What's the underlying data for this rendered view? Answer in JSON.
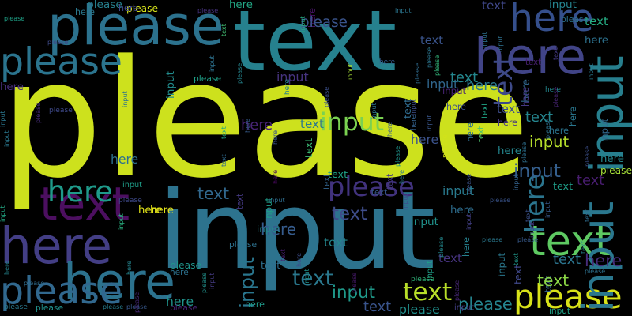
{
  "background": "#000000",
  "palette": {
    "lime": "#cde11d",
    "teal": "#21868f",
    "navy": "#31547d",
    "green": "#38b977",
    "purple": "#433e85",
    "dark_purple": "#440154",
    "blue": "#2f6c8e",
    "yellow_green": "#a9db35"
  },
  "words": [
    {
      "text": "please",
      "color": "#cde11d"
    },
    {
      "text": "input",
      "color": "#2d738e"
    },
    {
      "text": "text",
      "color": "#26818e"
    },
    {
      "text": "here",
      "color": "#433e85"
    },
    {
      "text": "please",
      "color": "#2c728e"
    },
    {
      "text": "here",
      "color": "#414487"
    },
    {
      "text": "text",
      "color": "#4c0f60"
    },
    {
      "text": "please",
      "color": "#2b748e"
    },
    {
      "text": "here",
      "color": "#2c728e"
    },
    {
      "text": "please",
      "color": "#31688e"
    },
    {
      "text": "input",
      "color": "#277f8e"
    },
    {
      "text": "here",
      "color": "#354f8c"
    },
    {
      "text": "text",
      "color": "#5ec962"
    },
    {
      "text": "please",
      "color": "#d8e219"
    },
    {
      "text": "input",
      "color": "#2a778e"
    },
    {
      "text": "input",
      "color": "#2a768e"
    },
    {
      "text": "here",
      "color": "#2b758e"
    },
    {
      "text": "input",
      "color": "#7ad151"
    },
    {
      "text": "text",
      "color": "#3e4a89"
    },
    {
      "text": "please",
      "color": "#41327d"
    },
    {
      "text": "here",
      "color": "#471365"
    },
    {
      "text": "input",
      "color": "#355f8d"
    },
    {
      "text": "please",
      "color": "#3a548c"
    },
    {
      "text": "input",
      "color": "#b5de2b"
    },
    {
      "text": "please",
      "color": "#d2e21b"
    },
    {
      "text": "here",
      "color": "#1f9a8a"
    },
    {
      "text": "text",
      "color": "#3bbb75"
    },
    {
      "text": "text",
      "color": "#32658e"
    },
    {
      "text": "here",
      "color": "#31688e"
    },
    {
      "text": "here",
      "color": "#24868e"
    },
    {
      "text": "input",
      "color": "#1f9e89"
    },
    {
      "text": "text",
      "color": "#2f6b8e"
    },
    {
      "text": "please",
      "color": "#3b528b"
    },
    {
      "text": "text",
      "color": "#34608d"
    },
    {
      "text": "input",
      "color": "#1f998a"
    },
    {
      "text": "please",
      "color": "#21908d"
    },
    {
      "text": "here",
      "color": "#2e6e8e"
    },
    {
      "text": "text",
      "color": "#481d6f"
    },
    {
      "text": "input",
      "color": "#29798e"
    },
    {
      "text": "here",
      "color": "#453882"
    },
    {
      "text": "please",
      "color": "#25848e"
    },
    {
      "text": "text",
      "color": "#24868e"
    },
    {
      "text": "text",
      "color": "#b8de29"
    },
    {
      "text": "text",
      "color": "#2a788e"
    },
    {
      "text": "input",
      "color": "#2a788e"
    },
    {
      "text": "please",
      "color": "#2e6f8e"
    },
    {
      "text": "text",
      "color": "#2f6c8e"
    },
    {
      "text": "please",
      "color": "#46327e"
    },
    {
      "text": "here",
      "color": "#22a785"
    },
    {
      "text": "please",
      "color": "#a2da37"
    },
    {
      "text": "input",
      "color": "#46337f"
    },
    {
      "text": "input",
      "color": "#30698e"
    },
    {
      "text": "here",
      "color": "#365c8d"
    },
    {
      "text": "input",
      "color": "#228c8d"
    },
    {
      "text": "input",
      "color": "#2c718e"
    },
    {
      "text": "please",
      "color": "#27808e"
    },
    {
      "text": "here",
      "color": "#482475"
    },
    {
      "text": "text",
      "color": "#3a548c"
    },
    {
      "text": "input",
      "color": "#1f9f88"
    },
    {
      "text": "here",
      "color": "#26818e"
    },
    {
      "text": "here",
      "color": "#2a788e"
    },
    {
      "text": "text",
      "color": "#20a386"
    },
    {
      "text": "please",
      "color": "#32b67a"
    },
    {
      "text": "input",
      "color": "#a5db36"
    },
    {
      "text": "please",
      "color": "#482878"
    },
    {
      "text": "input",
      "color": "#31678e"
    },
    {
      "text": "here",
      "color": "#453781"
    },
    {
      "text": "here",
      "color": "#3b528b"
    },
    {
      "text": "please",
      "color": "#2c718e"
    },
    {
      "text": "input",
      "color": "#297a8e"
    },
    {
      "text": "text",
      "color": "#31688e"
    },
    {
      "text": "input",
      "color": "#2d718e"
    },
    {
      "text": "text",
      "color": "#3f4889"
    },
    {
      "text": "please",
      "color": "#d5e21a"
    },
    {
      "text": "here",
      "color": "#2a778e"
    },
    {
      "text": "please",
      "color": "#1f958b"
    },
    {
      "text": "input",
      "color": "#29af7f"
    },
    {
      "text": "here",
      "color": "#e5e419"
    },
    {
      "text": "text",
      "color": "#3e4c8a"
    },
    {
      "text": "input",
      "color": "#33628d"
    },
    {
      "text": "please",
      "color": "#481a6c"
    },
    {
      "text": "please",
      "color": "#31b57b"
    },
    {
      "text": "text",
      "color": "#20a486"
    },
    {
      "text": "input",
      "color": "#39568c"
    },
    {
      "text": "here",
      "color": "#2e6d8e"
    },
    {
      "text": "please",
      "color": "#472d7b"
    },
    {
      "text": "text",
      "color": "#2b748e"
    },
    {
      "text": "input",
      "color": "#423f85"
    },
    {
      "text": "please",
      "color": "#1f948c"
    },
    {
      "text": "here",
      "color": "#20938c"
    },
    {
      "text": "here",
      "color": "#3c4f8a"
    },
    {
      "text": "text",
      "color": "#40bd72"
    },
    {
      "text": "here",
      "color": "#e2e418"
    },
    {
      "text": "here",
      "color": "#472c7a"
    },
    {
      "text": "text",
      "color": "#8bd646"
    },
    {
      "text": "text",
      "color": "#4ec36b"
    },
    {
      "text": "please",
      "color": "#472a7a"
    },
    {
      "text": "input",
      "color": "#25838e"
    },
    {
      "text": "here",
      "color": "#24878e"
    },
    {
      "text": "here",
      "color": "#2b748e"
    },
    {
      "text": "text",
      "color": "#443983"
    },
    {
      "text": "here",
      "color": "#46085c"
    },
    {
      "text": "text",
      "color": "#2e6e8e"
    },
    {
      "text": "input",
      "color": "#443a83"
    },
    {
      "text": "please",
      "color": "#482475"
    },
    {
      "text": "please",
      "color": "#2a788e"
    },
    {
      "text": "input",
      "color": "#20928c"
    },
    {
      "text": "text",
      "color": "#453882"
    },
    {
      "text": "text",
      "color": "#24878e"
    },
    {
      "text": "input",
      "color": "#3c508b"
    },
    {
      "text": "please",
      "color": "#2d718e"
    },
    {
      "text": "here",
      "color": "#26828e"
    },
    {
      "text": "text",
      "color": "#46337f"
    },
    {
      "text": "please",
      "color": "#23898e"
    },
    {
      "text": "please",
      "color": "#3e4989"
    },
    {
      "text": "input",
      "color": "#24878e"
    },
    {
      "text": "here",
      "color": "#34618d"
    },
    {
      "text": "input",
      "color": "#2d708e"
    },
    {
      "text": "please",
      "color": "#482273"
    },
    {
      "text": "please",
      "color": "#3c4f8a"
    },
    {
      "text": "text",
      "color": "#1f9e89"
    },
    {
      "text": "input",
      "color": "#2c738e"
    },
    {
      "text": "here",
      "color": "#23888e"
    },
    {
      "text": "input",
      "color": "#3d4e8a"
    },
    {
      "text": "here",
      "color": "#3a548c"
    },
    {
      "text": "here",
      "color": "#25858e"
    },
    {
      "text": "here",
      "color": "#2d708e"
    },
    {
      "text": "please",
      "color": "#38588c"
    },
    {
      "text": "input",
      "color": "#2a788e"
    },
    {
      "text": "please",
      "color": "#21918c"
    },
    {
      "text": "please",
      "color": "#1fa088"
    },
    {
      "text": "please",
      "color": "#2b758e"
    },
    {
      "text": "please",
      "color": "#375a8c"
    },
    {
      "text": "text",
      "color": "#3f4788"
    },
    {
      "text": "text",
      "color": "#25ab82"
    },
    {
      "text": "please",
      "color": "#277e8e"
    },
    {
      "text": "input",
      "color": "#1fa287"
    },
    {
      "text": "input",
      "color": "#423f85"
    },
    {
      "text": "input",
      "color": "#2a768e"
    },
    {
      "text": "please",
      "color": "#2f6b8e"
    },
    {
      "text": "input",
      "color": "#2b758e"
    },
    {
      "text": "here",
      "color": "#2a788e"
    },
    {
      "text": "text",
      "color": "#25858e"
    },
    {
      "text": "text",
      "color": "#443983"
    },
    {
      "text": "please",
      "color": "#3a548c"
    },
    {
      "text": "here",
      "color": "#3f4889"
    },
    {
      "text": "input",
      "color": "#2c718e"
    },
    {
      "text": "please",
      "color": "#3c508b"
    },
    {
      "text": "text",
      "color": "#481f70"
    },
    {
      "text": "input",
      "color": "#22a884"
    },
    {
      "text": "input",
      "color": "#1f9e89"
    },
    {
      "text": "please",
      "color": "#2f6c8e"
    },
    {
      "text": "text",
      "color": "#3b518b"
    },
    {
      "text": "please",
      "color": "#2a788e"
    },
    {
      "text": "here",
      "color": "#2c718e"
    },
    {
      "text": "text",
      "color": "#1f988b"
    },
    {
      "text": "here",
      "color": "#3d4e8a"
    },
    {
      "text": "here",
      "color": "#38588c"
    },
    {
      "text": "text",
      "color": "#1fa188"
    },
    {
      "text": "text",
      "color": "#26828e"
    },
    {
      "text": "input",
      "color": "#482374"
    },
    {
      "text": "here",
      "color": "#365c8d"
    },
    {
      "text": "please",
      "color": "#2d708e"
    },
    {
      "text": "please",
      "color": "#21918c"
    },
    {
      "text": "input",
      "color": "#443a83"
    },
    {
      "text": "here",
      "color": "#365d8d"
    },
    {
      "text": "please",
      "color": "#1fa187"
    },
    {
      "text": "text",
      "color": "#306a8e"
    },
    {
      "text": "here",
      "color": "#25848e"
    },
    {
      "text": "please",
      "color": "#2d718e"
    },
    {
      "text": "text",
      "color": "#2a788e"
    },
    {
      "text": "input",
      "color": "#375b8d"
    },
    {
      "text": "text",
      "color": "#38588c"
    },
    {
      "text": "input",
      "color": "#25ac82"
    },
    {
      "text": "here",
      "color": "#2a788e"
    },
    {
      "text": "please",
      "color": "#3e4a89"
    },
    {
      "text": "text",
      "color": "#482071"
    },
    {
      "text": "input",
      "color": "#21918c"
    },
    {
      "text": "here",
      "color": "#1f9a8a"
    },
    {
      "text": "please",
      "color": "#25858e"
    },
    {
      "text": "here",
      "color": "#2c718e"
    },
    {
      "text": "input",
      "color": "#2e6d8e"
    },
    {
      "text": "text",
      "color": "#3a548c"
    },
    {
      "text": "text",
      "color": "#3d4d8a"
    },
    {
      "text": "here",
      "color": "#472f7d"
    },
    {
      "text": "please",
      "color": "#3e4989"
    }
  ]
}
